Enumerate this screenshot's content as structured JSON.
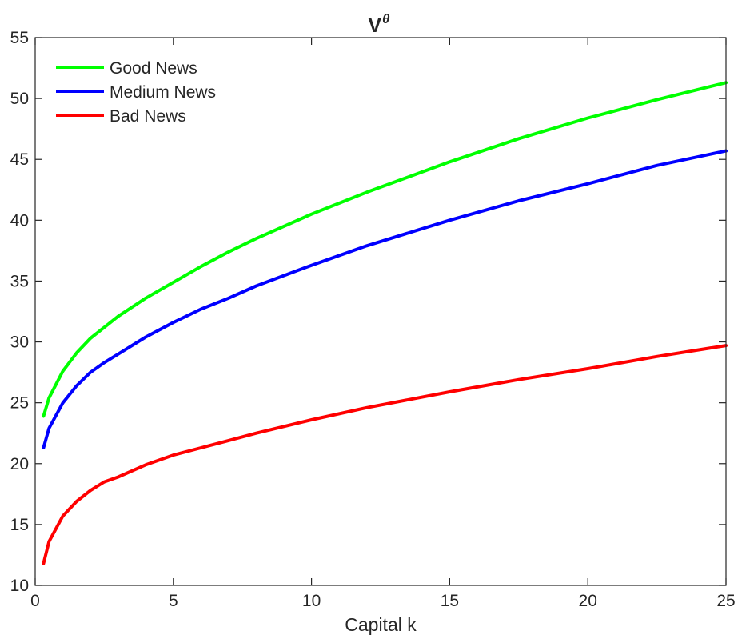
{
  "chart_data": {
    "type": "line",
    "title": {
      "main": "V",
      "superscript": "θ"
    },
    "xlabel": "Capital k",
    "ylabel": "",
    "xlim": [
      0,
      25
    ],
    "ylim": [
      10,
      55
    ],
    "xticks": [
      0,
      5,
      10,
      15,
      20,
      25
    ],
    "yticks": [
      10,
      15,
      20,
      25,
      30,
      35,
      40,
      45,
      50,
      55
    ],
    "xtick_labels": [
      "0",
      "5",
      "10",
      "15",
      "20",
      "25"
    ],
    "ytick_labels": [
      "10",
      "15",
      "20",
      "25",
      "30",
      "35",
      "40",
      "45",
      "50",
      "55"
    ],
    "grid": false,
    "legend_position": "top-left",
    "x": [
      0.3,
      0.5,
      1,
      1.5,
      2,
      2.5,
      3,
      4,
      5,
      6,
      7,
      8,
      10,
      12,
      15,
      17.5,
      20,
      22.5,
      25
    ],
    "series": [
      {
        "name": "Good News",
        "color": "#00ff00",
        "values": [
          23.9,
          25.4,
          27.6,
          29.1,
          30.3,
          31.2,
          32.1,
          33.6,
          34.9,
          36.2,
          37.4,
          38.5,
          40.5,
          42.3,
          44.8,
          46.7,
          48.4,
          49.9,
          51.3
        ]
      },
      {
        "name": "Medium News",
        "color": "#0000ff",
        "values": [
          21.3,
          22.9,
          25.0,
          26.4,
          27.5,
          28.3,
          29.0,
          30.4,
          31.6,
          32.7,
          33.6,
          34.6,
          36.3,
          37.9,
          40.0,
          41.6,
          43.0,
          44.5,
          45.7
        ]
      },
      {
        "name": "Bad News",
        "color": "#ff0000",
        "values": [
          11.8,
          13.6,
          15.7,
          16.9,
          17.8,
          18.5,
          18.9,
          19.9,
          20.7,
          21.3,
          21.9,
          22.5,
          23.6,
          24.6,
          25.9,
          26.9,
          27.8,
          28.8,
          29.7
        ]
      }
    ]
  }
}
